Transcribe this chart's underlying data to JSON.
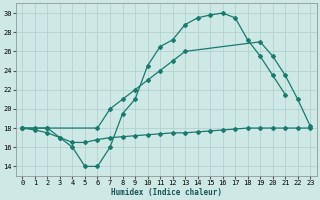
{
  "bg_color": "#cde8e5",
  "grid_color": "#aecfcc",
  "line_color": "#1a7a6e",
  "xlabel": "Humidex (Indice chaleur)",
  "xlim": [
    -0.5,
    23.5
  ],
  "ylim": [
    13.0,
    31.0
  ],
  "yticks": [
    14,
    16,
    18,
    20,
    22,
    24,
    26,
    28,
    30
  ],
  "xticks": [
    0,
    1,
    2,
    3,
    4,
    5,
    6,
    7,
    8,
    9,
    10,
    11,
    12,
    13,
    14,
    15,
    16,
    17,
    18,
    19,
    20,
    21,
    22,
    23
  ],
  "line1_x": [
    0,
    1,
    2,
    3,
    4,
    5,
    6,
    7,
    8,
    9,
    10,
    11,
    12,
    13,
    14,
    15,
    16,
    17,
    18,
    19,
    20,
    21
  ],
  "line1_y": [
    18,
    18,
    18,
    17,
    16,
    14,
    14,
    16,
    19.5,
    21,
    24.5,
    26.5,
    27.2,
    28.8,
    29.5,
    29.8,
    30.0,
    29.5,
    27.2,
    25.5,
    23.5,
    21.5
  ],
  "line2_x": [
    0,
    2,
    6,
    7,
    8,
    9,
    10,
    11,
    12,
    13,
    19,
    20,
    21,
    22,
    23
  ],
  "line2_y": [
    18,
    18,
    18,
    20,
    21,
    22,
    23,
    24,
    25,
    26,
    27,
    25.5,
    23.5,
    21.0,
    18.2
  ],
  "line3_x": [
    0,
    1,
    2,
    3,
    4,
    5,
    6,
    7,
    8,
    9,
    10,
    11,
    12,
    13,
    14,
    15,
    16,
    17,
    18,
    19,
    20,
    21,
    22,
    23
  ],
  "line3_y": [
    18,
    17.8,
    17.5,
    17.0,
    16.5,
    16.5,
    16.8,
    17.0,
    17.1,
    17.2,
    17.3,
    17.4,
    17.5,
    17.5,
    17.6,
    17.7,
    17.8,
    17.9,
    18.0,
    18.0,
    18.0,
    18.0,
    18.0,
    18.0
  ]
}
